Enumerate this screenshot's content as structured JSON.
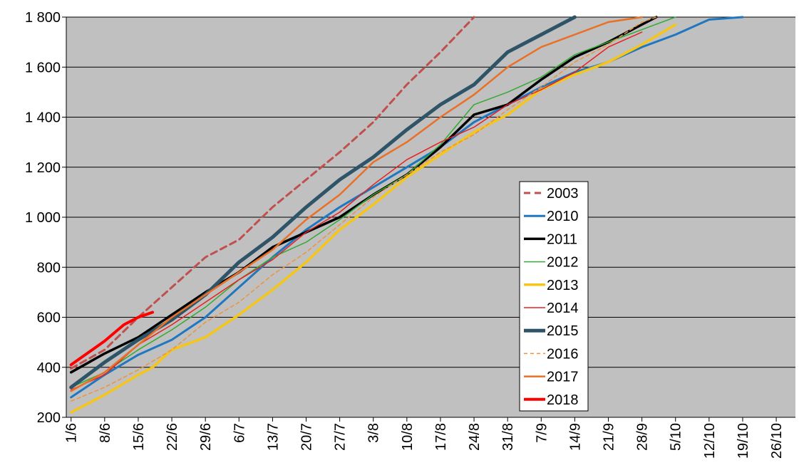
{
  "chart_data": {
    "type": "line",
    "title": "",
    "xlabel": "",
    "ylabel": "",
    "x_unit": "day",
    "x_tick_labels": [
      "1/6",
      "8/6",
      "15/6",
      "22/6",
      "29/6",
      "6/7",
      "13/7",
      "20/7",
      "27/7",
      "3/8",
      "10/8",
      "17/8",
      "24/8",
      "31/8",
      "7/9",
      "14/9",
      "21/9",
      "28/9",
      "5/10",
      "12/10",
      "19/10",
      "26/10"
    ],
    "x_tick_days": [
      0,
      7,
      14,
      21,
      28,
      35,
      42,
      49,
      56,
      63,
      70,
      77,
      84,
      91,
      98,
      105,
      112,
      119,
      126,
      133,
      140,
      147
    ],
    "ylim": [
      200,
      1800
    ],
    "y_ticks": [
      200,
      400,
      600,
      800,
      1000,
      1200,
      1400,
      1600,
      1800
    ],
    "y_tick_labels": [
      "200",
      "400",
      "600",
      "800",
      "1 000",
      "1 200",
      "1 400",
      "1 600",
      "1 800"
    ],
    "grid": "horizontal",
    "plot_background": "#C0C0C0",
    "legend_position": "center-right",
    "series": [
      {
        "name": "2003",
        "color": "#C0504D",
        "width": 3,
        "dash": "9,6",
        "points": [
          [
            0,
            395
          ],
          [
            7,
            470
          ],
          [
            14,
            600
          ],
          [
            21,
            720
          ],
          [
            28,
            840
          ],
          [
            35,
            910
          ],
          [
            42,
            1040
          ],
          [
            49,
            1150
          ],
          [
            56,
            1260
          ],
          [
            63,
            1380
          ],
          [
            70,
            1530
          ],
          [
            77,
            1660
          ],
          [
            84,
            1800
          ]
        ]
      },
      {
        "name": "2010",
        "color": "#1F77C0",
        "width": 3,
        "dash": "",
        "points": [
          [
            0,
            280
          ],
          [
            7,
            370
          ],
          [
            14,
            450
          ],
          [
            21,
            510
          ],
          [
            28,
            600
          ],
          [
            35,
            720
          ],
          [
            42,
            840
          ],
          [
            49,
            950
          ],
          [
            56,
            1040
          ],
          [
            63,
            1120
          ],
          [
            70,
            1200
          ],
          [
            77,
            1280
          ],
          [
            84,
            1380
          ],
          [
            91,
            1450
          ],
          [
            98,
            1520
          ],
          [
            105,
            1580
          ],
          [
            112,
            1620
          ],
          [
            119,
            1680
          ],
          [
            126,
            1730
          ],
          [
            133,
            1790
          ],
          [
            140,
            1800
          ]
        ]
      },
      {
        "name": "2011",
        "color": "#000000",
        "width": 3.5,
        "dash": "",
        "points": [
          [
            0,
            380
          ],
          [
            7,
            455
          ],
          [
            14,
            520
          ],
          [
            21,
            610
          ],
          [
            28,
            700
          ],
          [
            35,
            780
          ],
          [
            42,
            880
          ],
          [
            49,
            940
          ],
          [
            56,
            1000
          ],
          [
            63,
            1090
          ],
          [
            70,
            1170
          ],
          [
            77,
            1280
          ],
          [
            84,
            1410
          ],
          [
            91,
            1450
          ],
          [
            98,
            1550
          ],
          [
            105,
            1640
          ],
          [
            112,
            1700
          ],
          [
            119,
            1770
          ],
          [
            122,
            1800
          ]
        ]
      },
      {
        "name": "2012",
        "color": "#33AA33",
        "width": 1.5,
        "dash": "",
        "points": [
          [
            0,
            320
          ],
          [
            7,
            380
          ],
          [
            14,
            470
          ],
          [
            21,
            550
          ],
          [
            28,
            640
          ],
          [
            35,
            750
          ],
          [
            42,
            840
          ],
          [
            49,
            900
          ],
          [
            56,
            990
          ],
          [
            63,
            1090
          ],
          [
            70,
            1170
          ],
          [
            77,
            1290
          ],
          [
            84,
            1450
          ],
          [
            91,
            1500
          ],
          [
            98,
            1560
          ],
          [
            105,
            1650
          ],
          [
            112,
            1700
          ],
          [
            119,
            1750
          ],
          [
            126,
            1800
          ]
        ]
      },
      {
        "name": "2013",
        "color": "#F5C518",
        "width": 3.5,
        "dash": "",
        "points": [
          [
            0,
            220
          ],
          [
            7,
            290
          ],
          [
            14,
            370
          ],
          [
            17,
            400
          ],
          [
            21,
            470
          ],
          [
            28,
            520
          ],
          [
            35,
            610
          ],
          [
            42,
            710
          ],
          [
            49,
            820
          ],
          [
            56,
            950
          ],
          [
            63,
            1050
          ],
          [
            70,
            1160
          ],
          [
            77,
            1250
          ],
          [
            84,
            1340
          ],
          [
            91,
            1410
          ],
          [
            98,
            1510
          ],
          [
            105,
            1570
          ],
          [
            112,
            1620
          ],
          [
            119,
            1690
          ],
          [
            126,
            1770
          ]
        ]
      },
      {
        "name": "2014",
        "color": "#E82020",
        "width": 1.5,
        "dash": "",
        "points": [
          [
            0,
            310
          ],
          [
            7,
            370
          ],
          [
            14,
            490
          ],
          [
            21,
            570
          ],
          [
            28,
            660
          ],
          [
            35,
            750
          ],
          [
            42,
            830
          ],
          [
            49,
            940
          ],
          [
            56,
            1020
          ],
          [
            63,
            1130
          ],
          [
            70,
            1230
          ],
          [
            77,
            1300
          ],
          [
            84,
            1360
          ],
          [
            91,
            1450
          ],
          [
            98,
            1510
          ],
          [
            105,
            1580
          ],
          [
            112,
            1680
          ],
          [
            119,
            1740
          ]
        ]
      },
      {
        "name": "2015",
        "color": "#2F5468",
        "width": 5,
        "dash": "",
        "points": [
          [
            0,
            320
          ],
          [
            7,
            420
          ],
          [
            14,
            510
          ],
          [
            21,
            590
          ],
          [
            28,
            690
          ],
          [
            35,
            820
          ],
          [
            42,
            920
          ],
          [
            49,
            1040
          ],
          [
            56,
            1150
          ],
          [
            63,
            1240
          ],
          [
            70,
            1350
          ],
          [
            77,
            1450
          ],
          [
            84,
            1530
          ],
          [
            91,
            1660
          ],
          [
            98,
            1730
          ],
          [
            105,
            1800
          ]
        ]
      },
      {
        "name": "2016",
        "color": "#F0923A",
        "width": 1.5,
        "dash": "5,4",
        "points": [
          [
            0,
            265
          ],
          [
            7,
            320
          ],
          [
            14,
            390
          ],
          [
            21,
            470
          ],
          [
            28,
            580
          ],
          [
            35,
            660
          ],
          [
            42,
            770
          ],
          [
            49,
            860
          ],
          [
            56,
            970
          ],
          [
            63,
            1080
          ],
          [
            70,
            1170
          ],
          [
            77,
            1260
          ],
          [
            84,
            1330
          ],
          [
            91,
            1430
          ],
          [
            98,
            1520
          ],
          [
            105,
            1620
          ],
          [
            112,
            1690
          ],
          [
            119,
            1780
          ],
          [
            122,
            1800
          ]
        ]
      },
      {
        "name": "2017",
        "color": "#E97026",
        "width": 2.5,
        "dash": "",
        "points": [
          [
            0,
            305
          ],
          [
            7,
            380
          ],
          [
            14,
            490
          ],
          [
            21,
            600
          ],
          [
            28,
            690
          ],
          [
            35,
            780
          ],
          [
            42,
            870
          ],
          [
            49,
            990
          ],
          [
            56,
            1090
          ],
          [
            63,
            1220
          ],
          [
            70,
            1300
          ],
          [
            77,
            1400
          ],
          [
            84,
            1490
          ],
          [
            91,
            1600
          ],
          [
            98,
            1680
          ],
          [
            105,
            1730
          ],
          [
            112,
            1780
          ],
          [
            119,
            1800
          ]
        ]
      },
      {
        "name": "2018",
        "color": "#FF0000",
        "width": 4,
        "dash": "",
        "points": [
          [
            0,
            410
          ],
          [
            7,
            505
          ],
          [
            11,
            570
          ],
          [
            14,
            600
          ],
          [
            17,
            620
          ]
        ]
      }
    ]
  }
}
